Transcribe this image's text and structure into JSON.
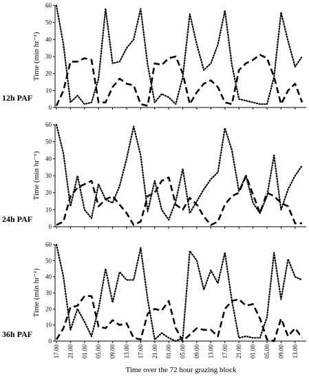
{
  "chart_data": {
    "type": "line",
    "xlabel": "Time over the 72 hour grazing block",
    "x_tick_labels": [
      "17.00",
      "21.00",
      "01.00",
      "05.00",
      "09.00",
      "13.00",
      "17.00",
      "21.00",
      "01.00",
      "05.00",
      "09.00",
      "13.00",
      "17.00",
      "21.00",
      "01.00",
      "05.00",
      "09.00",
      "13.00"
    ],
    "panels": [
      {
        "label": "12h PAF",
        "ylabel": "Time (min hr⁻¹)",
        "ylim": [
          0,
          60
        ],
        "yticks": [
          0,
          10,
          20,
          30,
          40,
          50,
          60
        ],
        "series": [
          {
            "style": "dotted",
            "x": [
              0,
              1,
              2,
              3,
              4,
              5,
              6,
              7,
              8,
              9,
              10,
              11,
              12,
              13,
              14,
              15,
              16,
              17,
              18,
              19,
              20,
              21,
              22,
              23,
              24,
              25,
              26,
              27,
              28,
              29,
              30,
              31,
              32,
              33,
              34,
              35
            ],
            "values": [
              60,
              37,
              3,
              7,
              2,
              3,
              17,
              58,
              26,
              27,
              35,
              40,
              58,
              25,
              3,
              8,
              6,
              2,
              18,
              55,
              37,
              22,
              26,
              37,
              57,
              25,
              5,
              4,
              3,
              2,
              2,
              18,
              56,
              39,
              24,
              30
            ]
          },
          {
            "style": "dashed",
            "x": [
              0,
              1,
              2,
              3,
              4,
              5,
              6,
              7,
              8,
              9,
              10,
              11,
              12,
              13,
              14,
              15,
              16,
              17,
              18,
              19,
              20,
              21,
              22,
              23,
              24,
              25,
              26,
              27,
              28,
              29,
              30,
              31,
              32,
              33,
              34,
              35
            ],
            "values": [
              1,
              10,
              27,
              27,
              29,
              28,
              3,
              3,
              12,
              17,
              14,
              13,
              2,
              1,
              26,
              25,
              29,
              30,
              20,
              2,
              9,
              14,
              16,
              12,
              3,
              2,
              22,
              26,
              28,
              31,
              29,
              18,
              2,
              10,
              14,
              3
            ]
          }
        ]
      },
      {
        "label": "24h PAF",
        "ylabel": "Time (min hr⁻¹)",
        "ylim": [
          0,
          60
        ],
        "yticks": [
          0,
          10,
          20,
          30,
          40,
          50,
          60
        ],
        "series": [
          {
            "style": "dotted",
            "x": [
              0,
              1,
              2,
              3,
              4,
              5,
              6,
              7,
              8,
              9,
              10,
              11,
              12,
              13,
              14,
              15,
              16,
              17,
              18,
              19,
              20,
              21,
              22,
              23,
              24,
              25,
              26,
              27,
              28,
              29,
              30,
              31,
              32,
              33,
              34,
              35
            ],
            "values": [
              60,
              43,
              12,
              30,
              10,
              5,
              25,
              16,
              14,
              24,
              40,
              59,
              42,
              9,
              27,
              10,
              4,
              15,
              34,
              8,
              15,
              22,
              28,
              32,
              58,
              45,
              21,
              30,
              14,
              8,
              18,
              42,
              10,
              22,
              30,
              36
            ]
          },
          {
            "style": "dashed",
            "x": [
              0,
              1,
              2,
              3,
              4,
              5,
              6,
              7,
              8,
              9,
              10,
              11,
              12,
              13,
              14,
              15,
              16,
              17,
              18,
              19,
              20,
              21,
              22,
              23,
              24,
              25,
              26,
              27,
              28,
              29,
              30,
              31,
              32,
              33,
              34,
              35
            ],
            "values": [
              1,
              3,
              18,
              23,
              25,
              27,
              12,
              16,
              18,
              13,
              8,
              1,
              3,
              18,
              20,
              27,
              29,
              13,
              10,
              17,
              13,
              6,
              1,
              3,
              13,
              18,
              20,
              30,
              19,
              8,
              20,
              18,
              14,
              12,
              2,
              2
            ]
          }
        ]
      },
      {
        "label": "36h PAF",
        "ylabel": "Time (min hr⁻¹)",
        "ylim": [
          0,
          60
        ],
        "yticks": [
          0,
          10,
          20,
          30,
          40,
          50,
          60
        ],
        "series": [
          {
            "style": "dotted",
            "x": [
              0,
              1,
              2,
              3,
              4,
              5,
              6,
              7,
              8,
              9,
              10,
              11,
              12,
              13,
              14,
              15,
              16,
              17,
              18,
              19,
              20,
              21,
              22,
              23,
              24,
              25,
              26,
              27,
              28,
              29,
              30,
              31,
              32,
              33,
              34,
              35
            ],
            "values": [
              60,
              40,
              7,
              20,
              12,
              3,
              20,
              45,
              24,
              43,
              38,
              38,
              58,
              26,
              1,
              5,
              2,
              0,
              2,
              56,
              50,
              32,
              44,
              36,
              55,
              25,
              2,
              3,
              2,
              2,
              15,
              55,
              26,
              51,
              40,
              38
            ]
          },
          {
            "style": "dashed",
            "x": [
              0,
              1,
              2,
              3,
              4,
              5,
              6,
              7,
              8,
              9,
              10,
              11,
              12,
              13,
              14,
              15,
              16,
              17,
              18,
              19,
              20,
              21,
              22,
              23,
              24,
              25,
              26,
              27,
              28,
              29,
              30,
              31,
              32,
              33,
              34,
              35
            ],
            "values": [
              1,
              8,
              21,
              22,
              28,
              28,
              9,
              8,
              13,
              10,
              11,
              2,
              1,
              17,
              20,
              19,
              25,
              8,
              0,
              4,
              8,
              7,
              7,
              3,
              20,
              25,
              26,
              22,
              23,
              14,
              1,
              0,
              14,
              3,
              8,
              2
            ]
          }
        ]
      }
    ]
  }
}
